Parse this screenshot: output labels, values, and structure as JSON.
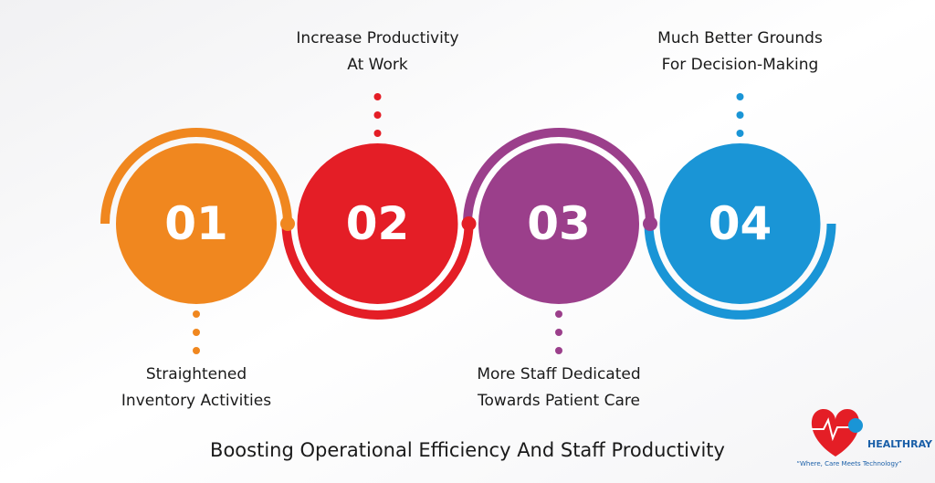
{
  "title": "Boosting Operational Efficiency And Staff Productivity",
  "steps": [
    {
      "number": "01",
      "color": "#f0871f",
      "label": [
        "Straightened",
        "Inventory Activities"
      ]
    },
    {
      "number": "02",
      "color": "#e41e26",
      "label": [
        "Increase Productivity",
        "At Work"
      ]
    },
    {
      "number": "03",
      "color": "#9b3f8b",
      "label": [
        "More Staff Dedicated",
        "Towards Patient Care"
      ]
    },
    {
      "number": "04",
      "color": "#1a95d6",
      "label": [
        "Much Better Grounds",
        "For Decision-Making"
      ]
    }
  ],
  "logo": {
    "name": "HEALTHRAY",
    "tagline": "“Where, Care Meets Technology”"
  }
}
